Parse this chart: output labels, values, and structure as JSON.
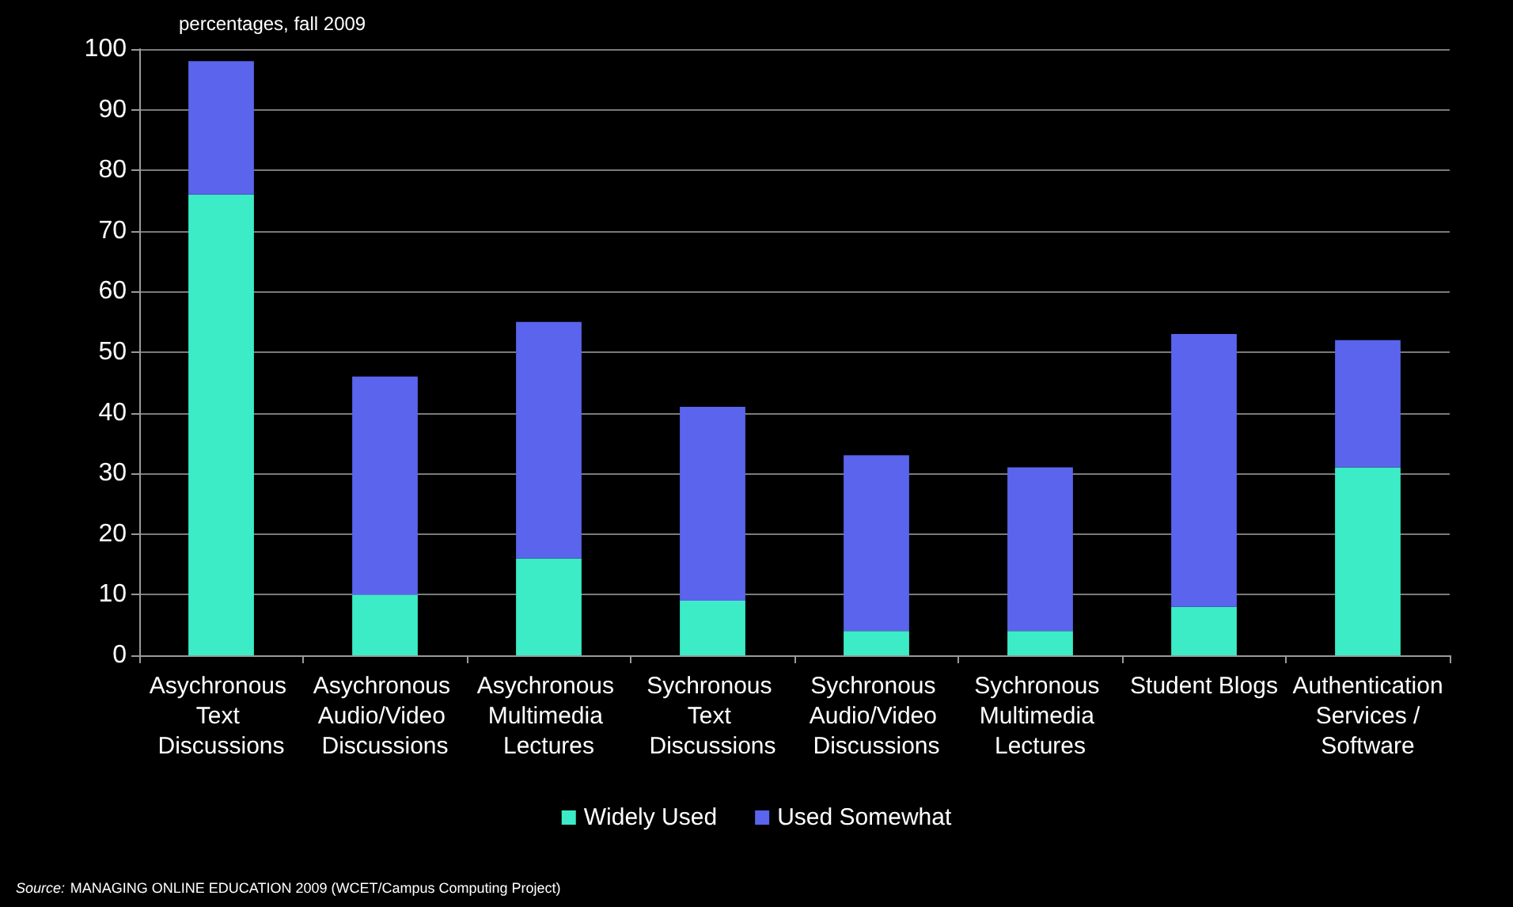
{
  "chart_data": {
    "type": "bar",
    "title": "percentages, fall 2009",
    "categories": [
      "Asychronous Text Discussions",
      "Asychronous Audio/Video Discussions",
      "Asychronous Multimedia Lectures",
      "Sychronous Text Discussions",
      "Sychronous Audio/Video Discussions",
      "Sychronous Multimedia Lectures",
      "Student Blogs",
      "Authentication Services / Software"
    ],
    "series": [
      {
        "name": "Widely Used",
        "color": "#3cecc6",
        "values": [
          76,
          10,
          16,
          9,
          4,
          4,
          8,
          31
        ]
      },
      {
        "name": "Used Somewhat",
        "color": "#5a64ec",
        "values": [
          22,
          36,
          39,
          32,
          29,
          27,
          45,
          21
        ]
      }
    ],
    "stacked": true,
    "ylim": [
      0,
      100
    ],
    "yticks": [
      0,
      10,
      20,
      30,
      40,
      50,
      60,
      70,
      80,
      90,
      100
    ],
    "grid": "y",
    "legend": "bottom",
    "annotations": [
      "Source: MANAGING ONLINE EDUCATION 2009 (WCET/Campus Computing Project)"
    ]
  }
}
